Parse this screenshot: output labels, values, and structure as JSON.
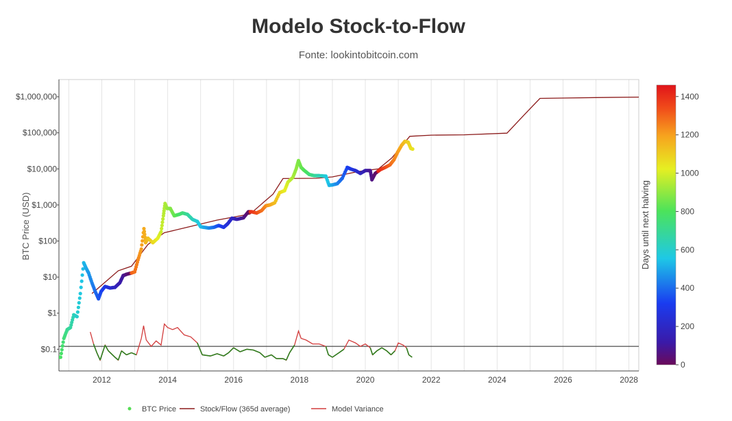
{
  "page": {
    "title": "Modelo Stock-to-Flow",
    "subtitle": "Fonte: lookintobitcoin.com"
  },
  "chart_data": {
    "type": "line",
    "y_scale": "log",
    "grid": "vertical lines at each year",
    "legend_position": "bottom",
    "xlim": [
      2010.7,
      2028.3
    ],
    "ylim": [
      0.025,
      3000000
    ],
    "ylabel": "BTC Price (USD)",
    "x_ticks": [
      2012,
      2014,
      2016,
      2018,
      2020,
      2022,
      2024,
      2026,
      2028
    ],
    "y_ticks": [
      {
        "value": 0.1,
        "label": "$0.1"
      },
      {
        "value": 1,
        "label": "$1"
      },
      {
        "value": 10,
        "label": "$10"
      },
      {
        "value": 100,
        "label": "$100"
      },
      {
        "value": 1000,
        "label": "$1,000"
      },
      {
        "value": 10000,
        "label": "$10,000"
      },
      {
        "value": 100000,
        "label": "$100,000"
      },
      {
        "value": 1000000,
        "label": "$1,000,000"
      }
    ],
    "reference_line": {
      "y": 0.12,
      "color": "#222222"
    },
    "colorbar": {
      "label": "Days until next halving",
      "min": 0,
      "max": 1460,
      "ticks": [
        0,
        200,
        400,
        600,
        800,
        1000,
        1200,
        1400
      ]
    },
    "halvings": [
      2012.9,
      2016.5,
      2020.37,
      2024.3
    ],
    "series": [
      {
        "name": "BTC Price",
        "color": "#55dd55",
        "points": [
          [
            2010.6,
            0.06
          ],
          [
            2010.75,
            0.06
          ],
          [
            2010.85,
            0.2
          ],
          [
            2010.95,
            0.35
          ],
          [
            2011.05,
            0.4
          ],
          [
            2011.15,
            0.9
          ],
          [
            2011.25,
            0.8
          ],
          [
            2011.35,
            3.5
          ],
          [
            2011.45,
            25
          ],
          [
            2011.52,
            18
          ],
          [
            2011.6,
            13
          ],
          [
            2011.7,
            7
          ],
          [
            2011.8,
            4
          ],
          [
            2011.9,
            2.5
          ],
          [
            2011.98,
            4
          ],
          [
            2012.1,
            5.5
          ],
          [
            2012.25,
            5
          ],
          [
            2012.4,
            5.2
          ],
          [
            2012.55,
            7
          ],
          [
            2012.65,
            11
          ],
          [
            2012.75,
            12
          ],
          [
            2012.9,
            13
          ],
          [
            2013.0,
            14
          ],
          [
            2013.1,
            30
          ],
          [
            2013.2,
            60
          ],
          [
            2013.28,
            220
          ],
          [
            2013.33,
            90
          ],
          [
            2013.4,
            120
          ],
          [
            2013.55,
            90
          ],
          [
            2013.7,
            120
          ],
          [
            2013.8,
            180
          ],
          [
            2013.87,
            500
          ],
          [
            2013.92,
            1100
          ],
          [
            2013.98,
            800
          ],
          [
            2014.08,
            800
          ],
          [
            2014.2,
            500
          ],
          [
            2014.35,
            550
          ],
          [
            2014.45,
            600
          ],
          [
            2014.6,
            550
          ],
          [
            2014.75,
            400
          ],
          [
            2014.9,
            350
          ],
          [
            2015.0,
            250
          ],
          [
            2015.1,
            240
          ],
          [
            2015.25,
            230
          ],
          [
            2015.4,
            240
          ],
          [
            2015.55,
            270
          ],
          [
            2015.7,
            240
          ],
          [
            2015.82,
            300
          ],
          [
            2015.95,
            430
          ],
          [
            2016.1,
            400
          ],
          [
            2016.3,
            440
          ],
          [
            2016.45,
            650
          ],
          [
            2016.55,
            650
          ],
          [
            2016.7,
            600
          ],
          [
            2016.85,
            700
          ],
          [
            2016.98,
            950
          ],
          [
            2017.1,
            1000
          ],
          [
            2017.25,
            1150
          ],
          [
            2017.4,
            2200
          ],
          [
            2017.55,
            2500
          ],
          [
            2017.65,
            4300
          ],
          [
            2017.8,
            5800
          ],
          [
            2017.9,
            10000
          ],
          [
            2017.97,
            17000
          ],
          [
            2018.05,
            11000
          ],
          [
            2018.15,
            9000
          ],
          [
            2018.3,
            7000
          ],
          [
            2018.45,
            6500
          ],
          [
            2018.6,
            6500
          ],
          [
            2018.8,
            6300
          ],
          [
            2018.9,
            3500
          ],
          [
            2019.0,
            3600
          ],
          [
            2019.15,
            3900
          ],
          [
            2019.3,
            5500
          ],
          [
            2019.45,
            11000
          ],
          [
            2019.55,
            10000
          ],
          [
            2019.7,
            9000
          ],
          [
            2019.85,
            7500
          ],
          [
            2020.0,
            9000
          ],
          [
            2020.15,
            9000
          ],
          [
            2020.2,
            5000
          ],
          [
            2020.3,
            7500
          ],
          [
            2020.45,
            9500
          ],
          [
            2020.6,
            11000
          ],
          [
            2020.75,
            13000
          ],
          [
            2020.87,
            18000
          ],
          [
            2020.98,
            29000
          ],
          [
            2021.1,
            45000
          ],
          [
            2021.2,
            58000
          ],
          [
            2021.3,
            55000
          ],
          [
            2021.38,
            37000
          ],
          [
            2021.45,
            35000
          ]
        ]
      },
      {
        "name": "Stock/Flow (365d average)",
        "color": "#8b1a1a",
        "points": [
          [
            2011.7,
            3.5
          ],
          [
            2012.0,
            6
          ],
          [
            2012.5,
            15
          ],
          [
            2012.9,
            20
          ],
          [
            2013.4,
            80
          ],
          [
            2013.9,
            170
          ],
          [
            2014.5,
            230
          ],
          [
            2015.5,
            380
          ],
          [
            2016.5,
            560
          ],
          [
            2017.2,
            2000
          ],
          [
            2017.5,
            5400
          ],
          [
            2018.5,
            5500
          ],
          [
            2019.0,
            6000
          ],
          [
            2019.8,
            8500
          ],
          [
            2020.4,
            10000
          ],
          [
            2020.8,
            20000
          ],
          [
            2021.2,
            55000
          ],
          [
            2021.35,
            80000
          ],
          [
            2022.0,
            86000
          ],
          [
            2023.0,
            88000
          ],
          [
            2024.3,
            98000
          ],
          [
            2024.8,
            300000
          ],
          [
            2025.3,
            900000
          ],
          [
            2026.0,
            920000
          ],
          [
            2027.0,
            950000
          ],
          [
            2028.3,
            980000
          ]
        ]
      },
      {
        "name": "Model Variance",
        "color": "#d23b3b",
        "points": [
          [
            2011.65,
            0.3
          ],
          [
            2011.75,
            0.14
          ],
          [
            2011.85,
            0.08
          ],
          [
            2011.95,
            0.05
          ],
          [
            2012.1,
            0.13
          ],
          [
            2012.2,
            0.09
          ],
          [
            2012.4,
            0.06
          ],
          [
            2012.5,
            0.05
          ],
          [
            2012.6,
            0.09
          ],
          [
            2012.75,
            0.07
          ],
          [
            2012.9,
            0.08
          ],
          [
            2013.05,
            0.07
          ],
          [
            2013.2,
            0.2
          ],
          [
            2013.27,
            0.45
          ],
          [
            2013.35,
            0.18
          ],
          [
            2013.5,
            0.12
          ],
          [
            2013.65,
            0.17
          ],
          [
            2013.8,
            0.13
          ],
          [
            2013.9,
            0.5
          ],
          [
            2014.0,
            0.4
          ],
          [
            2014.15,
            0.35
          ],
          [
            2014.3,
            0.4
          ],
          [
            2014.5,
            0.25
          ],
          [
            2014.7,
            0.22
          ],
          [
            2014.9,
            0.15
          ],
          [
            2015.05,
            0.07
          ],
          [
            2015.3,
            0.065
          ],
          [
            2015.5,
            0.075
          ],
          [
            2015.7,
            0.065
          ],
          [
            2015.85,
            0.08
          ],
          [
            2016.0,
            0.11
          ],
          [
            2016.2,
            0.085
          ],
          [
            2016.4,
            0.1
          ],
          [
            2016.6,
            0.095
          ],
          [
            2016.8,
            0.08
          ],
          [
            2016.95,
            0.06
          ],
          [
            2017.15,
            0.07
          ],
          [
            2017.3,
            0.055
          ],
          [
            2017.5,
            0.055
          ],
          [
            2017.6,
            0.05
          ],
          [
            2017.7,
            0.08
          ],
          [
            2017.85,
            0.13
          ],
          [
            2017.97,
            0.32
          ],
          [
            2018.05,
            0.2
          ],
          [
            2018.2,
            0.18
          ],
          [
            2018.4,
            0.14
          ],
          [
            2018.6,
            0.14
          ],
          [
            2018.8,
            0.12
          ],
          [
            2018.88,
            0.07
          ],
          [
            2019.0,
            0.06
          ],
          [
            2019.2,
            0.08
          ],
          [
            2019.35,
            0.1
          ],
          [
            2019.5,
            0.18
          ],
          [
            2019.7,
            0.15
          ],
          [
            2019.85,
            0.12
          ],
          [
            2020.0,
            0.14
          ],
          [
            2020.15,
            0.11
          ],
          [
            2020.22,
            0.07
          ],
          [
            2020.35,
            0.09
          ],
          [
            2020.5,
            0.11
          ],
          [
            2020.65,
            0.09
          ],
          [
            2020.78,
            0.07
          ],
          [
            2020.9,
            0.09
          ],
          [
            2021.0,
            0.15
          ],
          [
            2021.15,
            0.13
          ],
          [
            2021.25,
            0.11
          ],
          [
            2021.32,
            0.07
          ],
          [
            2021.42,
            0.06
          ]
        ]
      }
    ]
  }
}
